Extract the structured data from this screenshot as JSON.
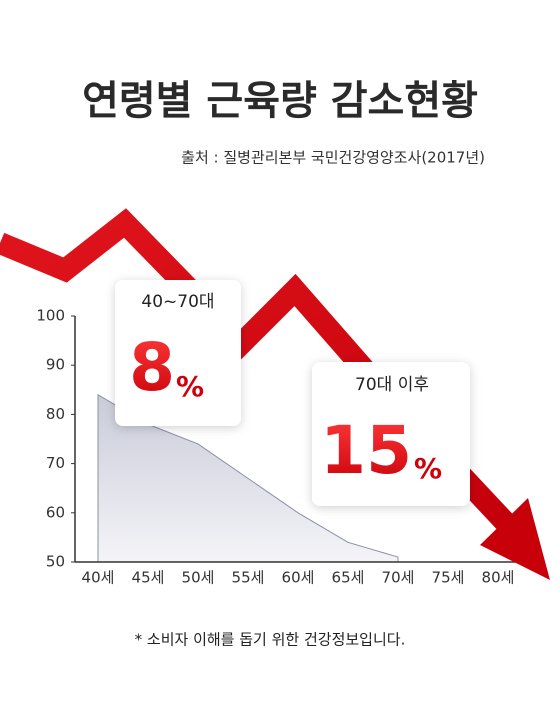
{
  "chart_data": {
    "type": "area",
    "title": "연령별 근육량 감소현황",
    "subtitle": "출처 : 질병관리본부 국민건강영양조사(2017년)",
    "categories": [
      "40세",
      "45세",
      "50세",
      "55세",
      "60세",
      "65세",
      "70세",
      "75세",
      "80세"
    ],
    "values": [
      84,
      78,
      74,
      67,
      60,
      54,
      51,
      null,
      null
    ],
    "color": "#8a8fa8",
    "ylim": [
      50,
      100
    ],
    "yticks": [
      50,
      60,
      70,
      80,
      90,
      100
    ],
    "annotations": [
      {
        "label": "40~70대",
        "value": 8,
        "unit": "%"
      },
      {
        "label": "70대 이후",
        "value": 15,
        "unit": "%"
      }
    ],
    "footnote": "* 소비자 이해를 돕기 위한 건강정보입니다."
  }
}
